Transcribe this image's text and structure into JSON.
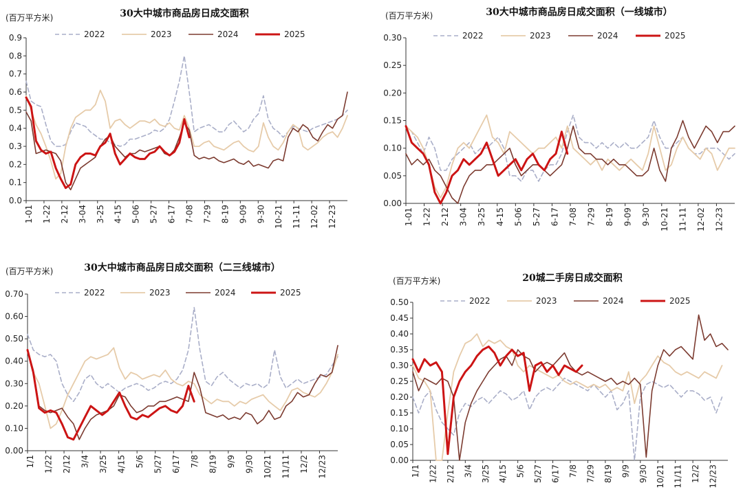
{
  "colors": {
    "2022": "#a9aec8",
    "2023": "#e6cba9",
    "2024": "#7b3a2f",
    "2025": "#cc1414"
  },
  "chart_data": [
    {
      "type": "line",
      "title": "30大中城市商品房日成交面积",
      "unit": "(百万平方米)",
      "ylim": [
        0,
        0.9
      ],
      "yticks": [
        "0.0",
        "0.1",
        "0.2",
        "0.3",
        "0.4",
        "0.5",
        "0.6",
        "0.7",
        "0.8",
        "0.9"
      ],
      "xticks": [
        "1-01",
        "1-22",
        "2-12",
        "3-04",
        "3-25",
        "4-15",
        "5-06",
        "5-27",
        "6-17",
        "7-08",
        "7-29",
        "8-19",
        "9-09",
        "9-30",
        "10-21",
        "11-11",
        "12-02",
        "12-23"
      ],
      "legend_position": "top",
      "series": [
        {
          "name": "2022",
          "style": "dashed",
          "values": [
            0.66,
            0.55,
            0.53,
            0.52,
            0.42,
            0.33,
            0.3,
            0.3,
            0.31,
            0.38,
            0.43,
            0.42,
            0.41,
            0.38,
            0.36,
            0.34,
            0.34,
            0.32,
            0.31,
            0.3,
            0.31,
            0.34,
            0.34,
            0.35,
            0.36,
            0.37,
            0.39,
            0.38,
            0.4,
            0.45,
            0.55,
            0.66,
            0.8,
            0.6,
            0.38,
            0.4,
            0.41,
            0.42,
            0.4,
            0.38,
            0.38,
            0.42,
            0.44,
            0.41,
            0.38,
            0.4,
            0.45,
            0.48,
            0.58,
            0.45,
            0.4,
            0.38,
            0.35,
            0.38,
            0.41,
            0.4,
            0.39,
            0.38,
            0.4,
            0.41,
            0.42,
            0.43,
            0.44,
            0.45,
            0.47,
            0.5
          ]
        },
        {
          "name": "2023",
          "style": "solid",
          "values": [
            0.58,
            0.5,
            0.42,
            0.37,
            0.3,
            0.22,
            0.12,
            0.15,
            0.3,
            0.4,
            0.46,
            0.48,
            0.5,
            0.5,
            0.53,
            0.61,
            0.55,
            0.4,
            0.44,
            0.45,
            0.42,
            0.4,
            0.42,
            0.44,
            0.44,
            0.43,
            0.45,
            0.42,
            0.41,
            0.43,
            0.4,
            0.39,
            0.47,
            0.4,
            0.3,
            0.3,
            0.32,
            0.33,
            0.3,
            0.29,
            0.28,
            0.3,
            0.32,
            0.33,
            0.3,
            0.28,
            0.27,
            0.3,
            0.43,
            0.35,
            0.3,
            0.28,
            0.32,
            0.38,
            0.42,
            0.4,
            0.3,
            0.28,
            0.3,
            0.32,
            0.35,
            0.37,
            0.38,
            0.35,
            0.4,
            0.47
          ]
        },
        {
          "name": "2024",
          "style": "solid",
          "values": [
            0.49,
            0.44,
            0.26,
            0.27,
            0.28,
            0.27,
            0.26,
            0.22,
            0.1,
            0.06,
            0.12,
            0.18,
            0.2,
            0.22,
            0.24,
            0.3,
            0.34,
            0.36,
            0.3,
            0.27,
            0.24,
            0.26,
            0.26,
            0.28,
            0.27,
            0.28,
            0.29,
            0.3,
            0.26,
            0.25,
            0.28,
            0.35,
            0.43,
            0.39,
            0.25,
            0.23,
            0.24,
            0.23,
            0.24,
            0.22,
            0.21,
            0.22,
            0.23,
            0.21,
            0.2,
            0.22,
            0.19,
            0.2,
            0.19,
            0.18,
            0.22,
            0.23,
            0.22,
            0.35,
            0.4,
            0.38,
            0.42,
            0.4,
            0.35,
            0.33,
            0.38,
            0.42,
            0.4,
            0.45,
            0.47,
            0.6
          ]
        },
        {
          "name": "2025",
          "style": "solid-thick",
          "values": [
            0.57,
            0.52,
            0.33,
            0.28,
            0.26,
            0.27,
            0.18,
            0.12,
            0.07,
            0.09,
            0.2,
            0.24,
            0.26,
            0.26,
            0.25,
            0.3,
            0.32,
            0.37,
            0.26,
            0.2,
            0.23,
            0.26,
            0.24,
            0.23,
            0.23,
            0.26,
            0.27,
            0.3,
            0.27,
            0.25,
            0.27,
            0.32,
            0.45,
            0.35
          ]
        }
      ]
    },
    {
      "type": "line",
      "title": "30大中城市商品房日成交面积（一线城市）",
      "unit": "(百万平方米)",
      "ylim": [
        0,
        0.3
      ],
      "yticks": [
        "0.00",
        "0.05",
        "0.10",
        "0.15",
        "0.20",
        "0.25",
        "0.30"
      ],
      "xticks": [
        "1-01",
        "1-22",
        "2-12",
        "3-04",
        "3-25",
        "4-15",
        "5-06",
        "5-27",
        "6-17",
        "7-08",
        "7-29",
        "8-19",
        "9-09",
        "9-30",
        "10-21",
        "11-11",
        "12-02",
        "12-23"
      ],
      "legend_position": "top",
      "series": [
        {
          "name": "2022",
          "style": "dashed",
          "values": [
            0.14,
            0.13,
            0.11,
            0.09,
            0.12,
            0.1,
            0.06,
            0.06,
            0.08,
            0.09,
            0.1,
            0.11,
            0.09,
            0.1,
            0.1,
            0.11,
            0.12,
            0.1,
            0.05,
            0.05,
            0.04,
            0.06,
            0.06,
            0.04,
            0.06,
            0.07,
            0.07,
            0.09,
            0.13,
            0.16,
            0.12,
            0.11,
            0.11,
            0.1,
            0.11,
            0.1,
            0.11,
            0.1,
            0.11,
            0.1,
            0.1,
            0.11,
            0.12,
            0.15,
            0.12,
            0.1,
            0.1,
            0.11,
            0.12,
            0.1,
            0.09,
            0.09,
            0.1,
            0.1,
            0.1,
            0.09,
            0.08,
            0.09
          ]
        },
        {
          "name": "2023",
          "style": "solid",
          "values": [
            0.14,
            0.13,
            0.12,
            0.1,
            0.07,
            0.03,
            0.01,
            0.03,
            0.07,
            0.1,
            0.11,
            0.1,
            0.12,
            0.14,
            0.16,
            0.12,
            0.11,
            0.09,
            0.13,
            0.12,
            0.11,
            0.1,
            0.09,
            0.1,
            0.1,
            0.11,
            0.12,
            0.1,
            0.14,
            0.1,
            0.09,
            0.08,
            0.07,
            0.08,
            0.06,
            0.08,
            0.07,
            0.06,
            0.07,
            0.08,
            0.07,
            0.06,
            0.09,
            0.14,
            0.1,
            0.06,
            0.07,
            0.1,
            0.12,
            0.1,
            0.09,
            0.08,
            0.1,
            0.09,
            0.06,
            0.08,
            0.1,
            0.1
          ]
        },
        {
          "name": "2024",
          "style": "solid",
          "values": [
            0.09,
            0.07,
            0.08,
            0.07,
            0.08,
            0.06,
            0.05,
            0.03,
            0.01,
            0.0,
            0.03,
            0.05,
            0.06,
            0.06,
            0.07,
            0.07,
            0.08,
            0.09,
            0.1,
            0.07,
            0.05,
            0.06,
            0.07,
            0.07,
            0.06,
            0.05,
            0.06,
            0.07,
            0.1,
            0.14,
            0.1,
            0.09,
            0.09,
            0.08,
            0.08,
            0.07,
            0.08,
            0.07,
            0.07,
            0.06,
            0.05,
            0.05,
            0.06,
            0.1,
            0.06,
            0.04,
            0.1,
            0.12,
            0.15,
            0.12,
            0.1,
            0.12,
            0.14,
            0.13,
            0.11,
            0.13,
            0.13,
            0.14
          ]
        },
        {
          "name": "2025",
          "style": "solid-thick",
          "values": [
            0.14,
            0.11,
            0.1,
            0.09,
            0.07,
            0.02,
            0.0,
            0.02,
            0.05,
            0.06,
            0.08,
            0.07,
            0.08,
            0.09,
            0.11,
            0.08,
            0.05,
            0.06,
            0.07,
            0.08,
            0.06,
            0.08,
            0.09,
            0.07,
            0.06,
            0.08,
            0.09,
            0.13,
            0.09
          ]
        }
      ]
    },
    {
      "type": "line",
      "title": "30大中城市商品房日成交面积（二三线城市）",
      "unit": "(百万平方米)",
      "ylim": [
        0,
        0.7
      ],
      "yticks": [
        "0.00",
        "0.10",
        "0.20",
        "0.30",
        "0.40",
        "0.50",
        "0.60",
        "0.70"
      ],
      "xticks": [
        "1/1",
        "1/22",
        "2/12",
        "3/4",
        "3/25",
        "4/15",
        "5/6",
        "5/27",
        "6/17",
        "7/8",
        "8/19",
        "9/9",
        "9/30",
        "10/21",
        "11/11",
        "12/2",
        "12/23"
      ],
      "legend_position": "top",
      "series": [
        {
          "name": "2022",
          "style": "dashed",
          "values": [
            0.52,
            0.45,
            0.43,
            0.42,
            0.43,
            0.4,
            0.3,
            0.25,
            0.22,
            0.26,
            0.32,
            0.34,
            0.3,
            0.28,
            0.3,
            0.28,
            0.26,
            0.28,
            0.29,
            0.3,
            0.29,
            0.27,
            0.28,
            0.3,
            0.31,
            0.3,
            0.32,
            0.36,
            0.45,
            0.64,
            0.45,
            0.31,
            0.29,
            0.33,
            0.35,
            0.32,
            0.3,
            0.28,
            0.3,
            0.29,
            0.3,
            0.28,
            0.3,
            0.45,
            0.33,
            0.28,
            0.3,
            0.32,
            0.3,
            0.31,
            0.32,
            0.33,
            0.34,
            0.38,
            0.42
          ]
        },
        {
          "name": "2023",
          "style": "solid",
          "values": [
            0.45,
            0.35,
            0.3,
            0.2,
            0.1,
            0.12,
            0.18,
            0.25,
            0.3,
            0.35,
            0.4,
            0.42,
            0.41,
            0.42,
            0.43,
            0.46,
            0.37,
            0.32,
            0.35,
            0.34,
            0.32,
            0.33,
            0.34,
            0.33,
            0.36,
            0.32,
            0.3,
            0.29,
            0.31,
            0.3,
            0.25,
            0.23,
            0.21,
            0.23,
            0.22,
            0.22,
            0.2,
            0.22,
            0.21,
            0.23,
            0.24,
            0.25,
            0.22,
            0.2,
            0.18,
            0.22,
            0.27,
            0.28,
            0.26,
            0.25,
            0.24,
            0.26,
            0.3,
            0.35,
            0.43
          ]
        },
        {
          "name": "2024",
          "style": "solid",
          "values": [
            0.45,
            0.36,
            0.2,
            0.18,
            0.17,
            0.18,
            0.19,
            0.15,
            0.12,
            0.05,
            0.1,
            0.14,
            0.16,
            0.17,
            0.18,
            0.2,
            0.25,
            0.24,
            0.2,
            0.17,
            0.18,
            0.2,
            0.2,
            0.22,
            0.22,
            0.23,
            0.24,
            0.23,
            0.22,
            0.35,
            0.28,
            0.17,
            0.16,
            0.15,
            0.16,
            0.14,
            0.15,
            0.14,
            0.17,
            0.16,
            0.12,
            0.14,
            0.18,
            0.14,
            0.15,
            0.2,
            0.22,
            0.26,
            0.24,
            0.25,
            0.3,
            0.34,
            0.33,
            0.35,
            0.47
          ]
        },
        {
          "name": "2025",
          "style": "solid-thick",
          "values": [
            0.45,
            0.35,
            0.19,
            0.17,
            0.18,
            0.17,
            0.12,
            0.06,
            0.05,
            0.1,
            0.15,
            0.2,
            0.18,
            0.16,
            0.18,
            0.22,
            0.26,
            0.2,
            0.15,
            0.14,
            0.16,
            0.15,
            0.17,
            0.19,
            0.2,
            0.18,
            0.17,
            0.2,
            0.29,
            0.22
          ]
        }
      ]
    },
    {
      "type": "line",
      "title": "20城二手房日成交面积",
      "unit": "(百万平方米)",
      "ylim": [
        0,
        0.5
      ],
      "yticks": [
        "0.00",
        "0.05",
        "0.10",
        "0.15",
        "0.20",
        "0.25",
        "0.30",
        "0.35",
        "0.40",
        "0.45",
        "0.50"
      ],
      "xticks": [
        "1/1",
        "1/22",
        "2/12",
        "3/4",
        "3/25",
        "4/15",
        "5/6",
        "5/27",
        "6/17",
        "7/8",
        "7/29",
        "8/19",
        "9/9",
        "9/30",
        "10/21",
        "11/11",
        "12/2",
        "12/23"
      ],
      "legend_position": "top",
      "series": [
        {
          "name": "2022",
          "style": "dashed",
          "values": [
            0.2,
            0.15,
            0.2,
            0.22,
            0.16,
            0.12,
            0.1,
            0.08,
            0.15,
            0.18,
            0.17,
            0.19,
            0.2,
            0.18,
            0.2,
            0.22,
            0.21,
            0.19,
            0.2,
            0.22,
            0.16,
            0.2,
            0.22,
            0.23,
            0.22,
            0.24,
            0.26,
            0.25,
            0.24,
            0.23,
            0.22,
            0.24,
            0.22,
            0.2,
            0.22,
            0.16,
            0.18,
            0.22,
            0.0,
            0.2,
            0.24,
            0.25,
            0.24,
            0.23,
            0.24,
            0.22,
            0.2,
            0.22,
            0.22,
            0.21,
            0.19,
            0.2,
            0.15,
            0.2
          ]
        },
        {
          "name": "2023",
          "style": "solid",
          "values": [
            0.3,
            0.26,
            0.25,
            0.22,
            0.0,
            0.0,
            0.15,
            0.28,
            0.33,
            0.37,
            0.38,
            0.4,
            0.36,
            0.38,
            0.37,
            0.38,
            0.36,
            0.35,
            0.3,
            0.28,
            0.3,
            0.29,
            0.28,
            0.27,
            0.26,
            0.27,
            0.25,
            0.24,
            0.25,
            0.24,
            0.23,
            0.24,
            0.23,
            0.24,
            0.22,
            0.23,
            0.22,
            0.28,
            0.18,
            0.25,
            0.27,
            0.3,
            0.33,
            0.31,
            0.3,
            0.28,
            0.27,
            0.28,
            0.27,
            0.26,
            0.28,
            0.27,
            0.26,
            0.3
          ]
        },
        {
          "name": "2024",
          "style": "solid",
          "values": [
            0.28,
            0.22,
            0.26,
            0.25,
            0.24,
            0.26,
            0.25,
            0.2,
            0.0,
            0.12,
            0.18,
            0.22,
            0.25,
            0.28,
            0.3,
            0.32,
            0.33,
            0.3,
            0.35,
            0.33,
            0.32,
            0.28,
            0.3,
            0.31,
            0.3,
            0.32,
            0.34,
            0.3,
            0.28,
            0.27,
            0.28,
            0.27,
            0.26,
            0.25,
            0.26,
            0.24,
            0.25,
            0.24,
            0.26,
            0.24,
            0.01,
            0.22,
            0.3,
            0.35,
            0.33,
            0.35,
            0.36,
            0.34,
            0.32,
            0.46,
            0.38,
            0.4,
            0.36,
            0.37,
            0.35
          ]
        },
        {
          "name": "2025",
          "style": "solid-thick",
          "values": [
            0.32,
            0.28,
            0.32,
            0.3,
            0.31,
            0.28,
            0.02,
            0.2,
            0.25,
            0.28,
            0.3,
            0.33,
            0.35,
            0.36,
            0.34,
            0.3,
            0.33,
            0.35,
            0.33,
            0.34,
            0.22,
            0.3,
            0.31,
            0.28,
            0.3,
            0.27,
            0.3,
            0.29,
            0.28,
            0.3
          ]
        }
      ]
    }
  ]
}
